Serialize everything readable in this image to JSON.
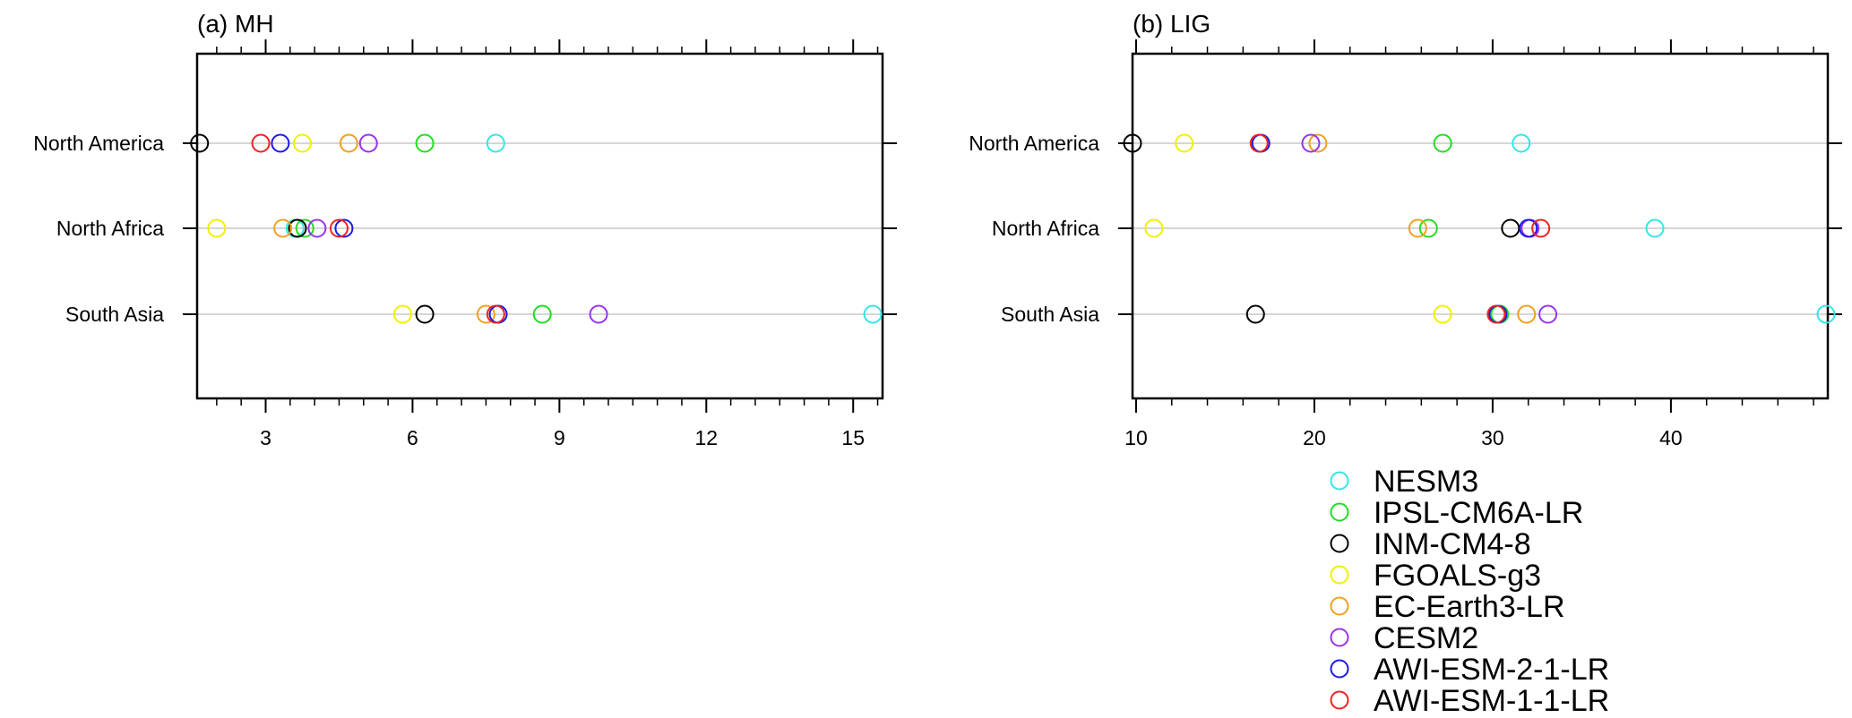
{
  "chart_data": [
    {
      "type": "scatter",
      "title": "(a) MH",
      "categories": [
        "North America",
        "North Africa",
        "South Asia"
      ],
      "xlim": [
        1.6,
        15.6
      ],
      "xticks": [
        3,
        6,
        9,
        12,
        15
      ],
      "xtick_labels": [
        "3",
        "6",
        "9",
        "12",
        "15"
      ],
      "minor_step": 0.5,
      "grid": true,
      "series": [
        {
          "name": "NESM3",
          "color": "#33e6e6",
          "values": [
            7.7,
            3.6,
            15.4
          ]
        },
        {
          "name": "IPSL-CM6A-LR",
          "color": "#22dd22",
          "values": [
            6.25,
            3.8,
            8.65
          ]
        },
        {
          "name": "INM-CM4-8",
          "color": "#000000",
          "values": [
            1.65,
            3.65,
            6.25
          ]
        },
        {
          "name": "FGOALS-g3",
          "color": "#f0f000",
          "values": [
            3.75,
            2.0,
            5.8
          ]
        },
        {
          "name": "EC-Earth3-LR",
          "color": "#f0a020",
          "values": [
            4.7,
            3.35,
            7.5
          ]
        },
        {
          "name": "CESM2",
          "color": "#9933ee",
          "values": [
            5.1,
            4.05,
            9.8
          ]
        },
        {
          "name": "AWI-ESM-2-1-LR",
          "color": "#1a1ae6",
          "values": [
            3.3,
            4.6,
            7.75
          ]
        },
        {
          "name": "AWI-ESM-1-1-LR",
          "color": "#ee2222",
          "values": [
            2.9,
            4.5,
            7.7
          ]
        }
      ]
    },
    {
      "type": "scatter",
      "title": "(b) LIG",
      "categories": [
        "North America",
        "North Africa",
        "South Asia"
      ],
      "xlim": [
        9.8,
        48.8
      ],
      "xticks": [
        10,
        20,
        30,
        40
      ],
      "xtick_labels": [
        "10",
        "20",
        "30",
        "40"
      ],
      "minor_step": 2,
      "grid": true,
      "series": [
        {
          "name": "NESM3",
          "color": "#33e6e6",
          "values": [
            31.6,
            39.1,
            48.7
          ]
        },
        {
          "name": "IPSL-CM6A-LR",
          "color": "#22dd22",
          "values": [
            27.2,
            26.4,
            30.4
          ]
        },
        {
          "name": "INM-CM4-8",
          "color": "#000000",
          "values": [
            9.8,
            31.0,
            16.7
          ]
        },
        {
          "name": "FGOALS-g3",
          "color": "#f0f000",
          "values": [
            12.7,
            11.0,
            27.2
          ]
        },
        {
          "name": "EC-Earth3-LR",
          "color": "#f0a020",
          "values": [
            20.2,
            25.8,
            31.9
          ]
        },
        {
          "name": "CESM2",
          "color": "#9933ee",
          "values": [
            19.8,
            32.1,
            33.1
          ]
        },
        {
          "name": "AWI-ESM-2-1-LR",
          "color": "#1a1ae6",
          "values": [
            17.0,
            32.0,
            30.3
          ]
        },
        {
          "name": "AWI-ESM-1-1-LR",
          "color": "#ee2222",
          "values": [
            16.9,
            32.7,
            30.2
          ]
        }
      ]
    }
  ],
  "legend": {
    "placement": "bottom-right",
    "order": [
      "NESM3",
      "IPSL-CM6A-LR",
      "INM-CM4-8",
      "FGOALS-g3",
      "EC-Earth3-LR",
      "CESM2",
      "AWI-ESM-2-1-LR",
      "AWI-ESM-1-1-LR"
    ]
  }
}
